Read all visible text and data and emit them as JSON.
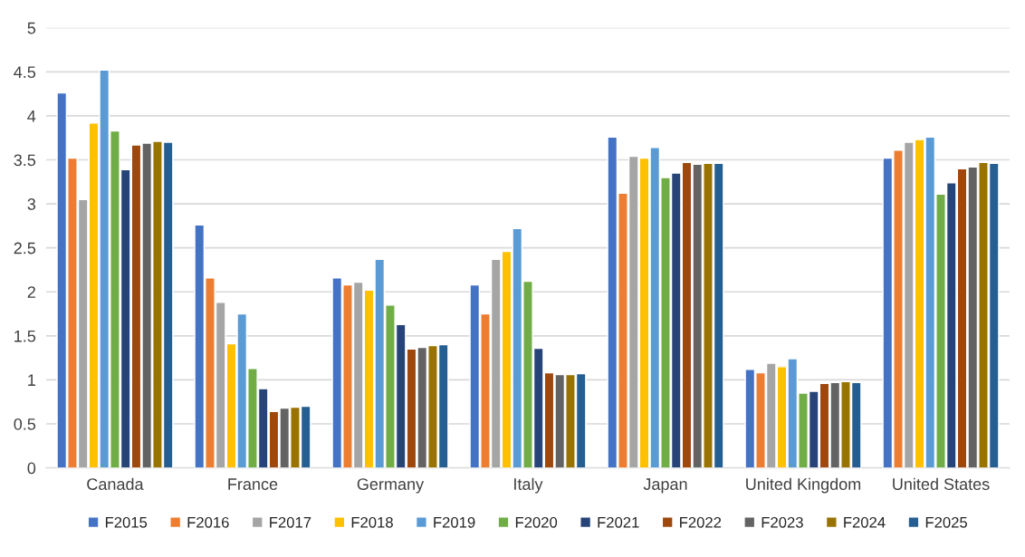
{
  "chart_data": {
    "type": "bar",
    "categories": [
      "Canada",
      "France",
      "Germany",
      "Italy",
      "Japan",
      "United Kingdom",
      "United States"
    ],
    "series": [
      {
        "name": "F2015",
        "color": "#4472c4",
        "values": [
          4.26,
          2.76,
          2.16,
          2.08,
          3.76,
          1.12,
          3.52
        ]
      },
      {
        "name": "F2016",
        "color": "#ed7d31",
        "values": [
          3.52,
          2.16,
          2.08,
          1.75,
          3.12,
          1.08,
          3.61
        ]
      },
      {
        "name": "F2017",
        "color": "#a5a5a5",
        "values": [
          3.05,
          1.88,
          2.11,
          2.37,
          3.54,
          1.19,
          3.7
        ]
      },
      {
        "name": "F2018",
        "color": "#ffc000",
        "values": [
          3.92,
          1.41,
          2.02,
          2.46,
          3.52,
          1.15,
          3.73
        ]
      },
      {
        "name": "F2019",
        "color": "#5b9bd5",
        "values": [
          4.52,
          1.75,
          2.37,
          2.72,
          3.64,
          1.24,
          3.76
        ]
      },
      {
        "name": "F2020",
        "color": "#70ad47",
        "values": [
          3.83,
          1.13,
          1.85,
          2.12,
          3.3,
          0.85,
          3.11
        ]
      },
      {
        "name": "F2021",
        "color": "#264478",
        "values": [
          3.39,
          0.9,
          1.63,
          1.36,
          3.35,
          0.87,
          3.24
        ]
      },
      {
        "name": "F2022",
        "color": "#9e480e",
        "values": [
          3.67,
          0.64,
          1.35,
          1.08,
          3.47,
          0.96,
          3.4
        ]
      },
      {
        "name": "F2023",
        "color": "#636363",
        "values": [
          3.69,
          0.68,
          1.37,
          1.06,
          3.45,
          0.97,
          3.42
        ]
      },
      {
        "name": "F2024",
        "color": "#997300",
        "values": [
          3.71,
          0.69,
          1.39,
          1.06,
          3.46,
          0.98,
          3.47
        ]
      },
      {
        "name": "F2025",
        "color": "#255e91",
        "values": [
          3.7,
          0.7,
          1.4,
          1.07,
          3.46,
          0.97,
          3.46
        ]
      }
    ],
    "ylim": [
      0,
      5
    ],
    "yticks": [
      0,
      0.5,
      1,
      1.5,
      2,
      2.5,
      3,
      3.5,
      4,
      4.5,
      5
    ],
    "grid": "y",
    "legend": "bottom"
  }
}
